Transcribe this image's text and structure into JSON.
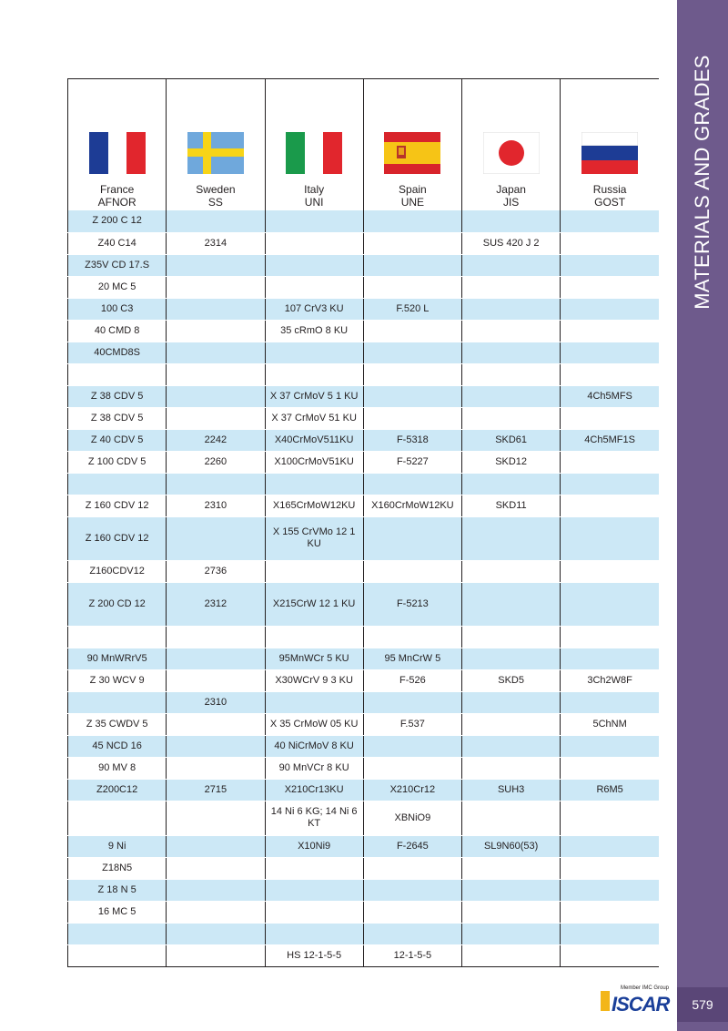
{
  "sidebar": {
    "title": "MATERIALS AND GRADES",
    "page_number": "579"
  },
  "logo": {
    "tagline": "Member IMC Group",
    "word": "ISCAR"
  },
  "columns": [
    {
      "country": "France",
      "standard": "AFNOR",
      "flag": "france-flag-icon"
    },
    {
      "country": "Sweden",
      "standard": "SS",
      "flag": "sweden-flag-icon"
    },
    {
      "country": "Italy",
      "standard": "UNI",
      "flag": "italy-flag-icon"
    },
    {
      "country": "Spain",
      "standard": "UNE",
      "flag": "spain-flag-icon"
    },
    {
      "country": "Japan",
      "standard": "JIS",
      "flag": "japan-flag-icon"
    },
    {
      "country": "Russia",
      "standard": "GOST",
      "flag": "russia-flag-icon"
    }
  ],
  "rows": [
    [
      "Z 200 C 12",
      "",
      "",
      "",
      "",
      ""
    ],
    [
      "Z40 C14",
      "2314",
      "",
      "",
      "SUS 420 J 2",
      ""
    ],
    [
      "Z35V CD 17.S",
      "",
      "",
      "",
      "",
      ""
    ],
    [
      "20 MC 5",
      "",
      "",
      "",
      "",
      ""
    ],
    [
      "100 C3",
      "",
      "107 CrV3 KU",
      "F.520 L",
      "",
      ""
    ],
    [
      "40 CMD 8",
      "",
      "35 cRmO 8 KU",
      "",
      "",
      ""
    ],
    [
      "40CMD8S",
      "",
      "",
      "",
      "",
      ""
    ],
    [
      "",
      "",
      "",
      "",
      "",
      ""
    ],
    [
      "Z 38 CDV 5",
      "",
      "X 37 CrMoV 5 1 KU",
      "",
      "",
      "4Ch5MFS"
    ],
    [
      "Z 38 CDV 5",
      "",
      "X 37 CrMoV 51 KU",
      "",
      "",
      ""
    ],
    [
      "Z 40 CDV 5",
      "2242",
      "X40CrMoV511KU",
      "F-5318",
      "SKD61",
      "4Ch5MF1S"
    ],
    [
      "Z 100 CDV 5",
      "2260",
      "X100CrMoV51KU",
      "F-5227",
      "SKD12",
      ""
    ],
    [
      "",
      "",
      "",
      "",
      "",
      ""
    ],
    [
      "Z 160 CDV 12",
      "2310",
      "X165CrMoW12KU",
      "X160CrMoW12KU",
      "SKD11",
      ""
    ],
    [
      "Z 160 CDV 12",
      "",
      "X 155 CrVMo 12 1 KU",
      "",
      "",
      ""
    ],
    [
      "Z160CDV12",
      "2736",
      "",
      "",
      "",
      ""
    ],
    [
      "Z 200 CD 12",
      "2312",
      "X215CrW 12 1 KU",
      "F-5213",
      "",
      ""
    ],
    [
      "",
      "",
      "",
      "",
      "",
      ""
    ],
    [
      "90 MnWRrV5",
      "",
      "95MnWCr 5 KU",
      "95 MnCrW 5",
      "",
      ""
    ],
    [
      "Z 30 WCV 9",
      "",
      "X30WCrV 9 3 KU",
      "F-526",
      "SKD5",
      "3Ch2W8F"
    ],
    [
      "",
      "2310",
      "",
      "",
      "",
      ""
    ],
    [
      "Z 35 CWDV 5",
      "",
      "X 35 CrMoW 05 KU",
      "F.537",
      "",
      "5ChNM"
    ],
    [
      "45 NCD 16",
      "",
      "40 NiCrMoV 8 KU",
      "",
      "",
      ""
    ],
    [
      "90 MV 8",
      "",
      "90 MnVCr 8 KU",
      "",
      "",
      ""
    ],
    [
      "Z200C12",
      "2715",
      "X210Cr13KU",
      "X210Cr12",
      "SUH3",
      "R6M5"
    ],
    [
      "",
      "",
      "14 Ni 6 KG; 14 Ni 6 KT",
      "XBNiO9",
      "",
      ""
    ],
    [
      "9 Ni",
      "",
      "X10Ni9",
      "F-2645",
      "SL9N60(53)",
      ""
    ],
    [
      "Z18N5",
      "",
      "",
      "",
      "",
      ""
    ],
    [
      "Z 18 N 5",
      "",
      "",
      "",
      "",
      ""
    ],
    [
      "16 MC 5",
      "",
      "",
      "",
      "",
      ""
    ],
    [
      "",
      "",
      "",
      "",
      "",
      ""
    ],
    [
      "",
      "",
      "HS 12-1-5-5",
      "12-1-5-5",
      "",
      ""
    ]
  ]
}
